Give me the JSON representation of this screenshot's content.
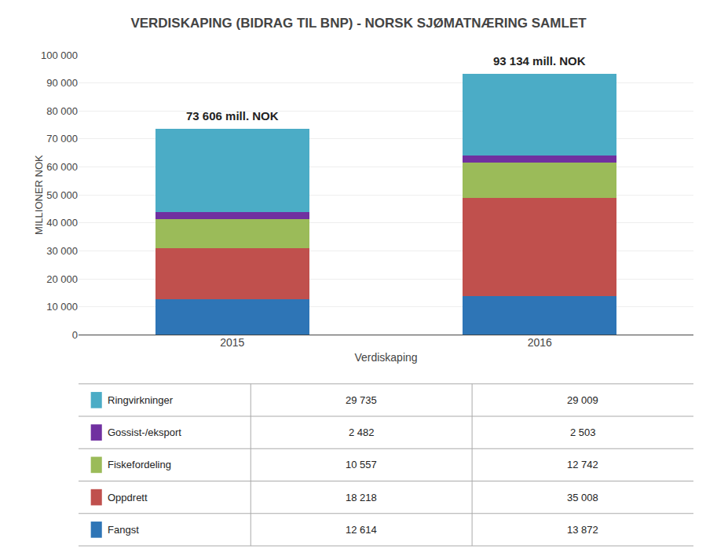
{
  "chart_data": {
    "type": "bar",
    "stacked": true,
    "title": "VERDISKAPING (BIDRAG TIL BNP) - NORSK SJØMATNÆRING SAMLET",
    "xlabel": "Verdiskaping",
    "ylabel": "MILLIONER NOK",
    "categories": [
      "2015",
      "2016"
    ],
    "series": [
      {
        "name": "Fangst",
        "color": "#2E75B6",
        "values": [
          12614,
          13872
        ],
        "value_labels": [
          "12 614",
          "13 872"
        ]
      },
      {
        "name": "Oppdrett",
        "color": "#C0504D",
        "values": [
          18218,
          35008
        ],
        "value_labels": [
          "18 218",
          "35 008"
        ]
      },
      {
        "name": "Fiskefordeling",
        "color": "#9BBB59",
        "values": [
          10557,
          12742
        ],
        "value_labels": [
          "10 557",
          "12 742"
        ]
      },
      {
        "name": "Gossist-/eksport",
        "color": "#7030A0",
        "values": [
          2482,
          2503
        ],
        "value_labels": [
          "2 482",
          "2 503"
        ]
      },
      {
        "name": "Ringvirkninger",
        "color": "#4BACC6",
        "values": [
          29735,
          29009
        ],
        "value_labels": [
          "29 735",
          "29 009"
        ]
      }
    ],
    "ylim": [
      0,
      100000
    ],
    "yticks": [
      0,
      {
        "value": 10000,
        "label": "10 000"
      },
      {
        "value": 20000,
        "label": "20 000"
      },
      {
        "value": 30000,
        "label": "30 000"
      },
      {
        "value": 40000,
        "label": "40 000"
      },
      {
        "value": 50000,
        "label": "50 000"
      },
      {
        "value": 60000,
        "label": "60 000"
      },
      {
        "value": 70000,
        "label": "70 000"
      },
      {
        "value": 80000,
        "label": "80 000"
      },
      {
        "value": 90000,
        "label": "90 000"
      },
      {
        "value": 100000,
        "label": "100 000"
      }
    ],
    "grid": true,
    "annotations": [
      {
        "x": "2015",
        "y": 73606,
        "text": "73 606 mill. NOK"
      },
      {
        "x": "2016",
        "y": 93134,
        "text": "93 134 mill. NOK"
      }
    ]
  }
}
